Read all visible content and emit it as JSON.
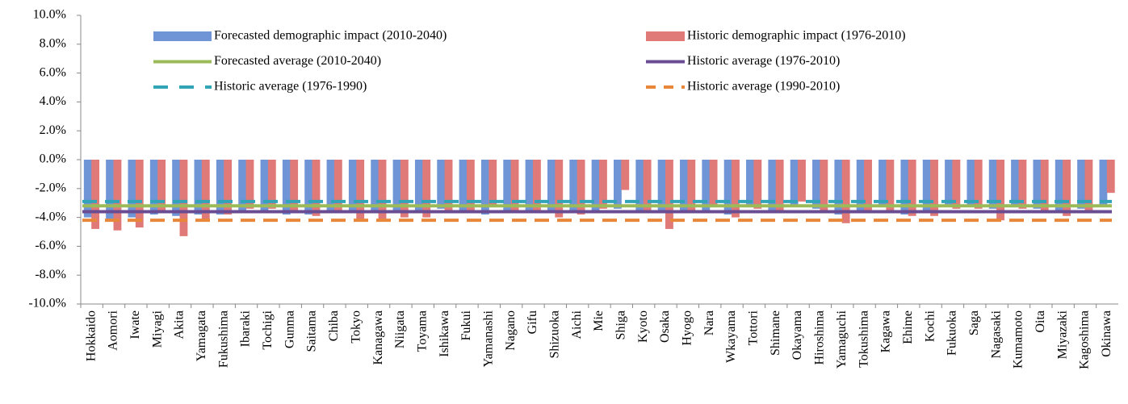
{
  "chart_data": {
    "type": "bar",
    "categories": [
      "Hokkaido",
      "Aomori",
      "Iwate",
      "Miyagi",
      "Akita",
      "Yamagata",
      "Fukushima",
      "Ibaraki",
      "Tochigi",
      "Gunma",
      "Saitama",
      "Chiba",
      "Tokyo",
      "Kanagawa",
      "Niigata",
      "Toyama",
      "Ishikawa",
      "Fukui",
      "Yamanashi",
      "Nagano",
      "Gifu",
      "Shizuoka",
      "Aichi",
      "Mie",
      "Shiga",
      "Kyoto",
      "Osaka",
      "Hyogo",
      "Nara",
      "Wkayama",
      "Tottori",
      "Shimane",
      "Okayama",
      "Hiroshima",
      "Yamaguchi",
      "Tokushima",
      "Kagawa",
      "Ehime",
      "Kochi",
      "Fukuoka",
      "Saga",
      "Nagasaki",
      "Kumamoto",
      "Oita",
      "Miyazaki",
      "Kagoshima",
      "Okinawa"
    ],
    "series": [
      {
        "name": "Forecasted demographic impact (2010-2040)",
        "color": "#6f95d6",
        "values": [
          -4.0,
          -4.1,
          -4.0,
          -3.8,
          -3.9,
          -3.8,
          -3.8,
          -3.5,
          -3.7,
          -3.8,
          -3.8,
          -3.7,
          -3.6,
          -3.7,
          -3.6,
          -3.6,
          -3.4,
          -3.6,
          -3.8,
          -3.6,
          -3.6,
          -3.6,
          -3.7,
          -3.6,
          -3.4,
          -3.6,
          -3.7,
          -3.7,
          -3.6,
          -3.8,
          -3.3,
          -3.6,
          -3.1,
          -3.4,
          -3.8,
          -3.5,
          -3.3,
          -3.8,
          -3.6,
          -3.2,
          -3.1,
          -3.4,
          -3.3,
          -3.4,
          -3.6,
          -3.4,
          -3.1
        ]
      },
      {
        "name": "Historic demographic impact (1976-2010)",
        "color": "#e07a78",
        "values": [
          -4.8,
          -4.9,
          -4.7,
          -3.6,
          -5.3,
          -4.3,
          -3.8,
          -3.4,
          -3.4,
          -3.5,
          -3.9,
          -3.7,
          -4.2,
          -4.1,
          -4.0,
          -4.0,
          -3.5,
          -3.6,
          -3.3,
          -3.7,
          -3.6,
          -4.0,
          -3.8,
          -3.4,
          -2.1,
          -3.6,
          -4.8,
          -3.7,
          -3.3,
          -4.0,
          -3.4,
          -3.6,
          -2.9,
          -3.6,
          -4.4,
          -3.5,
          -3.6,
          -3.9,
          -3.9,
          -3.4,
          -3.4,
          -4.2,
          -3.4,
          -3.6,
          -3.9,
          -3.7,
          -2.3
        ]
      }
    ],
    "averages": [
      {
        "name": "Forecasted average (2010-2040)",
        "color": "#9bbb59",
        "value": -3.2,
        "style": "solid"
      },
      {
        "name": "Historic average (1976-2010)",
        "color": "#6a4c93",
        "value": -3.6,
        "style": "solid"
      },
      {
        "name": "Historic average (1976-1990)",
        "color": "#31a4b8",
        "value": -2.9,
        "style": "dashed"
      },
      {
        "name": "Historic average (1990-2010)",
        "color": "#e8873a",
        "value": -4.2,
        "style": "dashed"
      }
    ],
    "ylim": [
      -10,
      10
    ],
    "yticks": [
      {
        "value": 10,
        "label": "10.0%"
      },
      {
        "value": 8,
        "label": "8.0%"
      },
      {
        "value": 6,
        "label": "6.0%"
      },
      {
        "value": 4,
        "label": "4.0%"
      },
      {
        "value": 2,
        "label": "2.0%"
      },
      {
        "value": 0,
        "label": "0.0%"
      },
      {
        "value": -2,
        "label": "-2.0%"
      },
      {
        "value": -4,
        "label": "-4.0%"
      },
      {
        "value": -6,
        "label": "-6.0%"
      },
      {
        "value": -8,
        "label": "-8.0%"
      },
      {
        "value": -10,
        "label": "-10.0%"
      }
    ],
    "grid": false
  }
}
